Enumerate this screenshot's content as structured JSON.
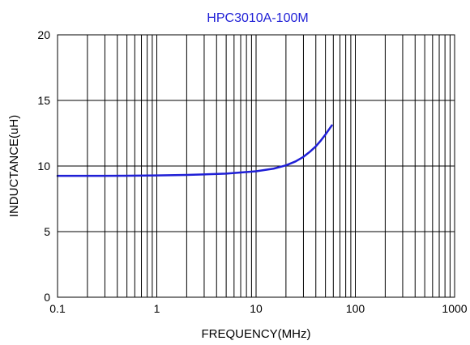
{
  "chart_data": {
    "type": "line",
    "title": "HPC3010A-100M",
    "xlabel": "FREQUENCY(MHz)",
    "ylabel": "INDUCTANCE(uH)",
    "x_scale": "log",
    "xlim": [
      0.1,
      1000
    ],
    "ylim": [
      0,
      20
    ],
    "x_ticks": [
      0.1,
      1,
      10,
      100,
      1000
    ],
    "x_tick_labels": [
      "0.1",
      "1",
      "10",
      "100",
      "1000"
    ],
    "y_ticks": [
      0,
      5,
      10,
      15,
      20
    ],
    "y_tick_labels": [
      "0",
      "5",
      "10",
      "15",
      "20"
    ],
    "grid": true,
    "colors": {
      "series": "#1f1fd6",
      "title": "#1f1fd6",
      "grid": "#000000"
    },
    "series": [
      {
        "x": [
          0.1,
          0.2,
          0.5,
          1,
          2,
          5,
          10,
          15,
          20,
          25,
          30,
          35,
          40,
          45,
          50,
          55,
          58
        ],
        "y": [
          9.25,
          9.25,
          9.26,
          9.28,
          9.32,
          9.42,
          9.6,
          9.8,
          10.05,
          10.35,
          10.7,
          11.1,
          11.5,
          11.95,
          12.4,
          12.85,
          13.1
        ]
      }
    ]
  }
}
